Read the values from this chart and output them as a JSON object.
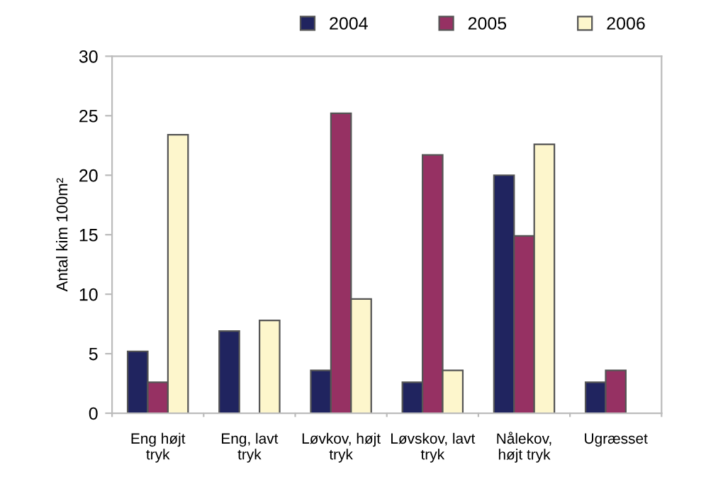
{
  "chart_data": {
    "type": "bar",
    "ylabel": "Antal kim 100m²",
    "categories": [
      "Eng højt\ntryk",
      "Eng, lavt\ntryk",
      "Løvkov, højt\ntryk",
      "Løvskov, lavt\ntryk",
      "Nålekov,\nhøjt tryk",
      "Ugræsset"
    ],
    "series": [
      {
        "name": "2004",
        "color": "#20245f",
        "values": [
          5.2,
          6.9,
          3.6,
          2.6,
          20,
          2.6
        ]
      },
      {
        "name": "2005",
        "color": "#963163",
        "values": [
          2.6,
          null,
          25.2,
          21.7,
          14.9,
          3.6
        ]
      },
      {
        "name": "2006",
        "color": "#fdf6cc",
        "values": [
          23.4,
          7.8,
          9.6,
          3.6,
          22.6,
          null
        ]
      }
    ],
    "ylim": [
      0,
      30
    ],
    "yticks": [
      0,
      5,
      10,
      15,
      20,
      25,
      30
    ],
    "grid": false,
    "legend": "top right"
  }
}
